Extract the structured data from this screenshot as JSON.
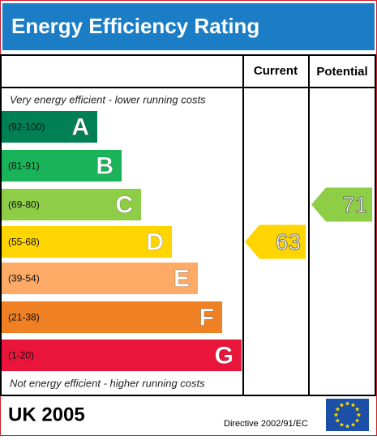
{
  "header": {
    "title": "Energy Efficiency Rating"
  },
  "columns": [
    "Current",
    "Potential"
  ],
  "top_note": "Very energy efficient - lower running costs",
  "bottom_note": "Not energy efficient - higher running costs",
  "bands": [
    {
      "range": "(92-100)",
      "letter": "A",
      "color": "#008054"
    },
    {
      "range": "(81-91)",
      "letter": "B",
      "color": "#19b459"
    },
    {
      "range": "(69-80)",
      "letter": "C",
      "color": "#8dce46"
    },
    {
      "range": "(55-68)",
      "letter": "D",
      "color": "#ffd500"
    },
    {
      "range": "(39-54)",
      "letter": "E",
      "color": "#fcaa65"
    },
    {
      "range": "(21-38)",
      "letter": "F",
      "color": "#ef8023"
    },
    {
      "range": "(1-20)",
      "letter": "G",
      "color": "#e9153b"
    }
  ],
  "current": {
    "value": "63",
    "band": 3
  },
  "potential": {
    "value": "71",
    "band": 2
  },
  "footer": {
    "country": "UK 2005",
    "directive": "Directive 2002/91/EC"
  }
}
